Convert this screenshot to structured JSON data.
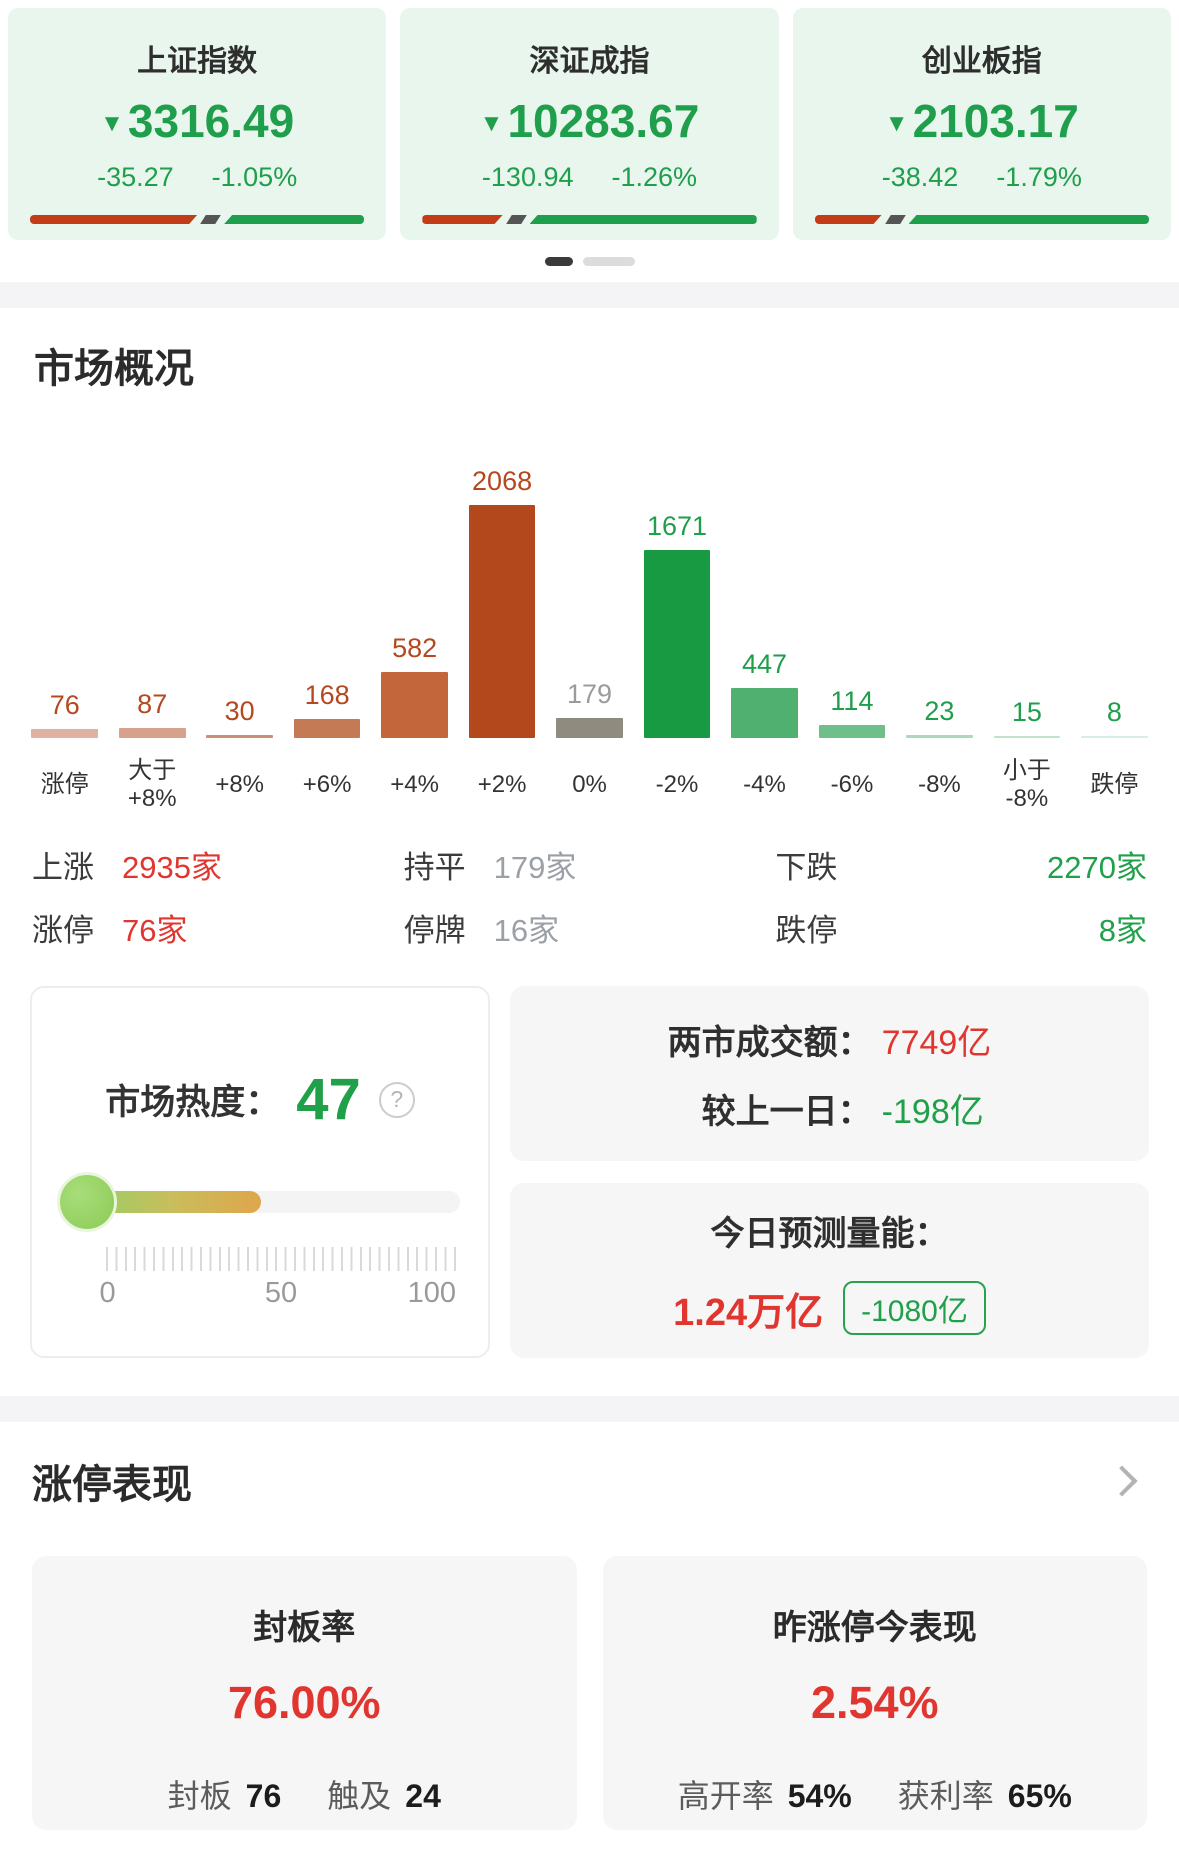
{
  "indices": {
    "items": [
      {
        "name": "上证指数",
        "arrow": "▼",
        "value": "3316.49",
        "change": "-35.27",
        "change_pct": "-1.05%",
        "red_ratio_pct": 50
      },
      {
        "name": "深证成指",
        "arrow": "▼",
        "value": "10283.67",
        "change": "-130.94",
        "change_pct": "-1.26%",
        "red_ratio_pct": 24
      },
      {
        "name": "创业板指",
        "arrow": "▼",
        "value": "2103.17",
        "change": "-38.42",
        "change_pct": "-1.79%",
        "red_ratio_pct": 20
      }
    ]
  },
  "market_overview": {
    "title": "市场概况",
    "chart_data": {
      "type": "bar",
      "title": "市场概况涨跌分布",
      "categories": [
        "涨停",
        "大于\n+8%",
        "+8%",
        "+6%",
        "+4%",
        "+2%",
        "0%",
        "-2%",
        "-4%",
        "-6%",
        "-8%",
        "小于\n-8%",
        "跌停"
      ],
      "values": [
        76,
        87,
        30,
        168,
        582,
        2068,
        179,
        1671,
        447,
        114,
        23,
        15,
        8
      ],
      "ymax": 2068,
      "grid": false,
      "bar_colors": [
        "#ddb2a1",
        "#d7a28c",
        "#c98f75",
        "#c57a56",
        "#c4663c",
        "#b4481d",
        "#8f8c7f",
        "#189a42",
        "#4fb070",
        "#6fbf8b",
        "#abd9bb",
        "#bfe2cc",
        "#d8eee0"
      ],
      "label_colors": [
        "#b5481e",
        "#b5481e",
        "#b5481e",
        "#b5481e",
        "#b5481e",
        "#b5481e",
        "#9b9b9b",
        "#1f9e4b",
        "#1f9e4b",
        "#1f9e4b",
        "#1f9e4b",
        "#1f9e4b",
        "#1f9e4b"
      ]
    },
    "summary": {
      "rows": [
        [
          {
            "label": "上涨",
            "value": "2935家",
            "color": "red"
          },
          {
            "label": "持平",
            "value": "179家",
            "color": "gray"
          },
          {
            "label": "下跌",
            "value": "2270家",
            "color": "green"
          }
        ],
        [
          {
            "label": "涨停",
            "value": "76家",
            "color": "red"
          },
          {
            "label": "停牌",
            "value": "16家",
            "color": "gray"
          },
          {
            "label": "跌停",
            "value": "8家",
            "color": "green"
          }
        ]
      ]
    }
  },
  "heat": {
    "label": "市场热度：",
    "value": "47",
    "value_num": 47,
    "help_icon": "?",
    "scale_min": "0",
    "scale_mid": "50",
    "scale_max": "100"
  },
  "turnover": {
    "row1_label": "两市成交额：",
    "row1_value": "7749亿",
    "row2_label": "较上一日：",
    "row2_value": "-198亿"
  },
  "forecast": {
    "label": "今日预测量能：",
    "value": "1.24万亿",
    "badge": "-1080亿"
  },
  "limit_up": {
    "title": "涨停表现",
    "cards": [
      {
        "title": "封板率",
        "pct": "76.00%",
        "stats": [
          {
            "label": "封板",
            "value": "76"
          },
          {
            "label": "触及",
            "value": "24"
          }
        ]
      },
      {
        "title": "昨涨停今表现",
        "pct": "2.54%",
        "stats": [
          {
            "label": "高开率",
            "value": "54%"
          },
          {
            "label": "获利率",
            "value": "65%"
          }
        ]
      }
    ]
  },
  "colors": {
    "up_red": "#e0362f",
    "down_green": "#21a04a",
    "flat_gray": "#9aa0a6",
    "index_green": "#1f9e4b",
    "card_mint": "#e8f6ee"
  }
}
